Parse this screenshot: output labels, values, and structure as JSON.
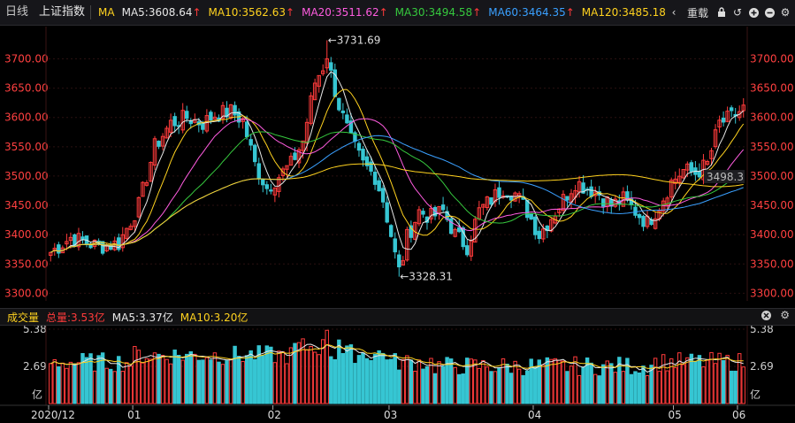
{
  "header": {
    "tabs": [
      {
        "label": "日线"
      },
      {
        "label": "上证指数"
      }
    ],
    "indicator": "MA",
    "ma_labels": [
      {
        "text": "MA5:3608.64",
        "color": "#e8e8e8"
      },
      {
        "text": "MA10:3562.63",
        "color": "#ffd21f"
      },
      {
        "text": "MA20:3511.62",
        "color": "#ff5ce0"
      },
      {
        "text": "MA30:3494.58",
        "color": "#36c93e"
      },
      {
        "text": "MA60:3464.35",
        "color": "#3aa0ff"
      },
      {
        "text": "MA120:3485.18",
        "color": "#ffd21f"
      }
    ],
    "up_arrow": "↑",
    "restore_label": "重载",
    "tools": [
      "chevron-left-icon",
      "lock-icon",
      "undo-icon",
      "zoom-in-icon",
      "zoom-out-icon",
      "gear-icon"
    ]
  },
  "volume_header": {
    "title": "成交量",
    "total": "总量:3.53亿",
    "ma5": "MA5:3.37亿",
    "ma10": "MA10:3.20亿"
  },
  "colors": {
    "up": "#ff3b3b",
    "down": "#36c6d3",
    "ma5": "#e8e8e8",
    "ma10": "#ffd21f",
    "ma20": "#ff5ce0",
    "ma30": "#36c93e",
    "ma60": "#3aa0ff",
    "ma120": "#ffd21f",
    "axis_text": "#ff4040",
    "grid": "#2a1010"
  },
  "chart_data": [
    {
      "type": "candlestick",
      "y_ticks": [
        "3700.00",
        "3650.00",
        "3600.00",
        "3550.00",
        "3500.00",
        "3450.00",
        "3400.00",
        "3350.00",
        "3300.00"
      ],
      "ylim": [
        3290,
        3740
      ],
      "x_labels": [
        "2020/12",
        "01",
        "02",
        "03",
        "04",
        "05",
        "06"
      ],
      "annotations": [
        {
          "text": "←3731.69",
          "value": 3731.69
        },
        {
          "text": "←3328.31",
          "value": 3328.31
        }
      ],
      "last_price_label": "3498.3",
      "anchors": [
        [
          0,
          3370
        ],
        [
          5,
          3395
        ],
        [
          12,
          3380
        ],
        [
          17,
          3385
        ],
        [
          22,
          3450
        ],
        [
          26,
          3550
        ],
        [
          30,
          3590
        ],
        [
          34,
          3600
        ],
        [
          38,
          3590
        ],
        [
          41,
          3605
        ],
        [
          45,
          3610
        ],
        [
          48,
          3595
        ],
        [
          51,
          3520
        ],
        [
          54,
          3480
        ],
        [
          57,
          3500
        ],
        [
          60,
          3520
        ],
        [
          63,
          3560
        ],
        [
          66,
          3660
        ],
        [
          69,
          3700
        ],
        [
          72,
          3620
        ],
        [
          75,
          3560
        ],
        [
          78,
          3520
        ],
        [
          81,
          3500
        ],
        [
          83,
          3460
        ],
        [
          85,
          3400
        ],
        [
          87,
          3330
        ],
        [
          89,
          3395
        ],
        [
          92,
          3440
        ],
        [
          95,
          3430
        ],
        [
          98,
          3440
        ],
        [
          101,
          3400
        ],
        [
          104,
          3380
        ],
        [
          107,
          3440
        ],
        [
          110,
          3460
        ],
        [
          113,
          3480
        ],
        [
          116,
          3470
        ],
        [
          119,
          3440
        ],
        [
          122,
          3400
        ],
        [
          125,
          3430
        ],
        [
          128,
          3460
        ],
        [
          131,
          3490
        ],
        [
          134,
          3480
        ],
        [
          137,
          3470
        ],
        [
          140,
          3450
        ],
        [
          143,
          3460
        ],
        [
          146,
          3440
        ],
        [
          149,
          3420
        ],
        [
          152,
          3450
        ],
        [
          155,
          3490
        ],
        [
          158,
          3510
        ],
        [
          161,
          3505
        ],
        [
          164,
          3520
        ],
        [
          167,
          3590
        ],
        [
          170,
          3600
        ],
        [
          173,
          3615
        ]
      ]
    },
    {
      "type": "bar",
      "y_ticks": [
        "5.38",
        "2.69",
        "亿"
      ],
      "ylim": [
        0,
        5.38
      ]
    }
  ]
}
